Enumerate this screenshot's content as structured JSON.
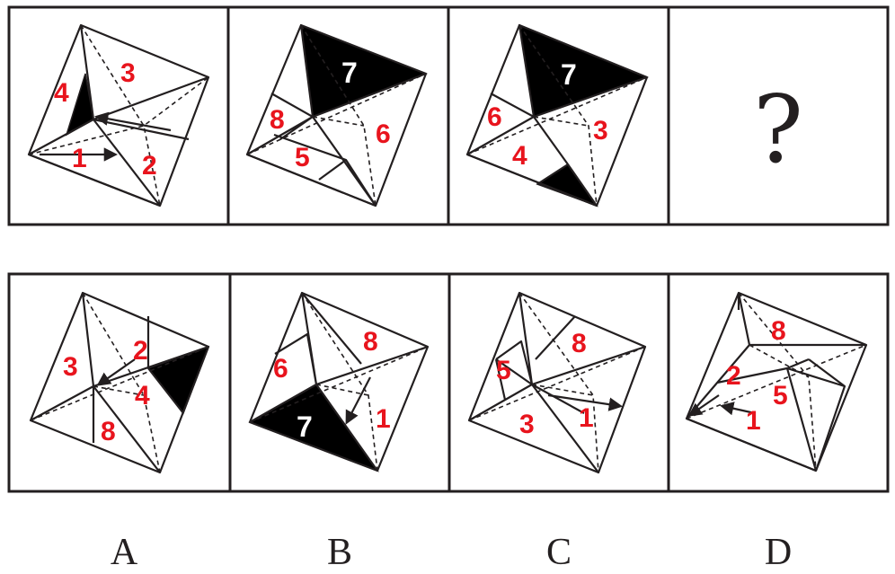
{
  "question_row": {
    "figures": [
      {
        "labels": [
          "4",
          "3",
          "1",
          "2"
        ]
      },
      {
        "labels": [
          "7",
          "8",
          "6",
          "5"
        ]
      },
      {
        "labels": [
          "7",
          "6",
          "3",
          "4"
        ]
      }
    ],
    "unknown": "?"
  },
  "options": [
    {
      "letter": "A",
      "labels": [
        "3",
        "2",
        "4",
        "8"
      ]
    },
    {
      "letter": "B",
      "labels": [
        "6",
        "8",
        "7",
        "1"
      ]
    },
    {
      "letter": "C",
      "labels": [
        "5",
        "8",
        "3",
        "1"
      ]
    },
    {
      "letter": "D",
      "labels": [
        "8",
        "2",
        "5",
        "1"
      ]
    }
  ]
}
